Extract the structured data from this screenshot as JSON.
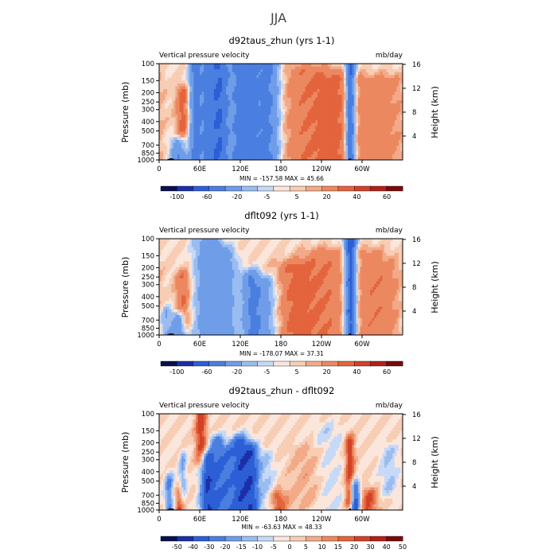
{
  "figure": {
    "title": "JJA",
    "colors": {
      "palette": [
        "#08104e",
        "#1c2fa8",
        "#2c5fd6",
        "#4a7fe0",
        "#6f9de8",
        "#9bbcf0",
        "#c6d9f6",
        "#fbe6dc",
        "#f7cdb4",
        "#f2aa88",
        "#ec8860",
        "#e3643d",
        "#d24128",
        "#b32018",
        "#7a0a0a"
      ],
      "topography": "#000000"
    }
  },
  "chart_data": [
    {
      "type": "heatmap",
      "title": "d92taus_zhun (yrs 1-1)",
      "left_string": "Vertical pressure velocity",
      "right_string": "mb/day",
      "xlabel": "",
      "ylabel": "Pressure (mb)",
      "y2label": "Height (km)",
      "xticks": [
        "0",
        "60E",
        "120E",
        "180",
        "120W",
        "60W"
      ],
      "yticks": [
        "100",
        "150",
        "200",
        "250",
        "300",
        "400",
        "500",
        "700",
        "850",
        "1000"
      ],
      "y2ticks": [
        "16",
        "12",
        "8",
        "4"
      ],
      "x_range": [
        0,
        360
      ],
      "y_range": [
        1000,
        100
      ],
      "minmax": "MIN = -157.58   MAX =  45.66",
      "min": -157.58,
      "max": 45.66,
      "colorbar": {
        "labels": [
          "-100",
          "-60",
          "-20",
          "-5",
          "5",
          "20",
          "40",
          "60"
        ]
      },
      "levels": [
        -120,
        -100,
        -80,
        -60,
        -40,
        -20,
        -10,
        -5,
        0,
        5,
        10,
        20,
        30,
        40,
        50,
        60
      ],
      "features": [
        {
          "lon": 30,
          "value": -45,
          "width": 9,
          "p_top": 700,
          "p_bot": 1000
        },
        {
          "lon": 35,
          "value": 25,
          "width": 7,
          "p_top": 200,
          "p_bot": 700
        },
        {
          "lon": 52,
          "value": -35,
          "width": 6,
          "p_top": 100,
          "p_bot": 1000
        },
        {
          "lon": 62,
          "value": -20,
          "width": 8,
          "p_top": 100,
          "p_bot": 1000
        },
        {
          "lon": 78,
          "value": -45,
          "width": 10,
          "p_top": 100,
          "p_bot": 1000
        },
        {
          "lon": 93,
          "value": -40,
          "width": 8,
          "p_top": 100,
          "p_bot": 1000
        },
        {
          "lon": 115,
          "value": -35,
          "width": 10,
          "p_top": 100,
          "p_bot": 1000
        },
        {
          "lon": 137,
          "value": -40,
          "width": 12,
          "p_top": 100,
          "p_bot": 1000
        },
        {
          "lon": 160,
          "value": -35,
          "width": 10,
          "p_top": 100,
          "p_bot": 1000
        },
        {
          "lon": 172,
          "value": -15,
          "width": 8,
          "p_top": 100,
          "p_bot": 1000
        },
        {
          "lon": 220,
          "value": 18,
          "width": 30,
          "p_top": 120,
          "p_bot": 1000
        },
        {
          "lon": 260,
          "value": 15,
          "width": 20,
          "p_top": 150,
          "p_bot": 1000
        },
        {
          "lon": 283,
          "value": -70,
          "width": 5,
          "p_top": 100,
          "p_bot": 1000
        },
        {
          "lon": 310,
          "value": 12,
          "width": 25,
          "p_top": 150,
          "p_bot": 1000
        },
        {
          "lon": 345,
          "value": 8,
          "width": 15,
          "p_top": 150,
          "p_bot": 1000
        }
      ]
    },
    {
      "type": "heatmap",
      "title": "dflt092 (yrs 1-1)",
      "left_string": "Vertical pressure velocity",
      "right_string": "mb/day",
      "xlabel": "",
      "ylabel": "Pressure (mb)",
      "y2label": "Height (km)",
      "xticks": [
        "0",
        "60E",
        "120E",
        "180",
        "120W",
        "60W"
      ],
      "yticks": [
        "100",
        "150",
        "200",
        "250",
        "300",
        "400",
        "500",
        "700",
        "850",
        "1000"
      ],
      "y2ticks": [
        "16",
        "12",
        "8",
        "4"
      ],
      "x_range": [
        0,
        360
      ],
      "y_range": [
        1000,
        100
      ],
      "minmax": "MIN = -178.07   MAX =  37.31",
      "min": -178.07,
      "max": 37.31,
      "colorbar": {
        "labels": [
          "-100",
          "-60",
          "-20",
          "-5",
          "5",
          "20",
          "40",
          "60"
        ]
      },
      "levels": [
        -120,
        -100,
        -80,
        -60,
        -40,
        -20,
        -10,
        -5,
        0,
        5,
        10,
        20,
        30,
        40,
        50,
        60
      ],
      "features": [
        {
          "lon": 10,
          "value": -20,
          "width": 6,
          "p_top": 600,
          "p_bot": 1000
        },
        {
          "lon": 28,
          "value": -40,
          "width": 7,
          "p_top": 700,
          "p_bot": 1000
        },
        {
          "lon": 35,
          "value": 20,
          "width": 8,
          "p_top": 250,
          "p_bot": 700
        },
        {
          "lon": 62,
          "value": -15,
          "width": 10,
          "p_top": 100,
          "p_bot": 1000
        },
        {
          "lon": 80,
          "value": -30,
          "width": 12,
          "p_top": 120,
          "p_bot": 1000
        },
        {
          "lon": 100,
          "value": -25,
          "width": 10,
          "p_top": 150,
          "p_bot": 1000
        },
        {
          "lon": 135,
          "value": -35,
          "width": 10,
          "p_top": 250,
          "p_bot": 1000
        },
        {
          "lon": 155,
          "value": -30,
          "width": 12,
          "p_top": 300,
          "p_bot": 1000
        },
        {
          "lon": 200,
          "value": 20,
          "width": 20,
          "p_top": 200,
          "p_bot": 1000
        },
        {
          "lon": 245,
          "value": 18,
          "width": 25,
          "p_top": 150,
          "p_bot": 1000
        },
        {
          "lon": 283,
          "value": -75,
          "width": 6,
          "p_top": 100,
          "p_bot": 1000
        },
        {
          "lon": 310,
          "value": 15,
          "width": 20,
          "p_top": 150,
          "p_bot": 1000
        },
        {
          "lon": 340,
          "value": 10,
          "width": 15,
          "p_top": 200,
          "p_bot": 1000
        }
      ]
    },
    {
      "type": "heatmap",
      "title": "d92taus_zhun - dflt092",
      "left_string": "Vertical pressure velocity",
      "right_string": "mb/day",
      "xlabel": "",
      "ylabel": "Pressure (mb)",
      "y2label": "Height (km)",
      "xticks": [
        "0",
        "60E",
        "120E",
        "180",
        "120W",
        "60W"
      ],
      "yticks": [
        "100",
        "150",
        "200",
        "250",
        "300",
        "400",
        "500",
        "700",
        "850",
        "1000"
      ],
      "y2ticks": [
        "16",
        "12",
        "8",
        "4"
      ],
      "x_range": [
        0,
        360
      ],
      "y_range": [
        1000,
        100
      ],
      "minmax": "MIN = -63.63   MAX =  48.33",
      "min": -63.63,
      "max": 48.33,
      "colorbar": {
        "labels": [
          "-50",
          "-40",
          "-30",
          "-20",
          "-15",
          "-10",
          "-5",
          "0",
          "5",
          "10",
          "15",
          "20",
          "30",
          "40",
          "50"
        ]
      },
      "levels": [
        -60,
        -50,
        -40,
        -30,
        -20,
        -15,
        -10,
        -5,
        0,
        5,
        10,
        15,
        20,
        30,
        40,
        50
      ],
      "features": [
        {
          "lon": 15,
          "value": -20,
          "width": 5,
          "p_top": 500,
          "p_bot": 1000
        },
        {
          "lon": 30,
          "value": 20,
          "width": 5,
          "p_top": 700,
          "p_bot": 1000
        },
        {
          "lon": 35,
          "value": -15,
          "width": 4,
          "p_top": 300,
          "p_bot": 700
        },
        {
          "lon": 62,
          "value": 25,
          "width": 6,
          "p_top": 100,
          "p_bot": 300
        },
        {
          "lon": 70,
          "value": -35,
          "width": 7,
          "p_top": 300,
          "p_bot": 1000
        },
        {
          "lon": 85,
          "value": -25,
          "width": 8,
          "p_top": 200,
          "p_bot": 1000
        },
        {
          "lon": 100,
          "value": -20,
          "width": 8,
          "p_top": 250,
          "p_bot": 1000
        },
        {
          "lon": 120,
          "value": -35,
          "width": 10,
          "p_top": 200,
          "p_bot": 1000
        },
        {
          "lon": 138,
          "value": -30,
          "width": 8,
          "p_top": 250,
          "p_bot": 1000
        },
        {
          "lon": 160,
          "value": -10,
          "width": 8,
          "p_top": 300,
          "p_bot": 1000
        },
        {
          "lon": 175,
          "value": 20,
          "width": 10,
          "p_top": 750,
          "p_bot": 1000
        },
        {
          "lon": 220,
          "value": 8,
          "width": 20,
          "p_top": 250,
          "p_bot": 800
        },
        {
          "lon": 250,
          "value": -8,
          "width": 15,
          "p_top": 150,
          "p_bot": 1000
        },
        {
          "lon": 282,
          "value": 25,
          "width": 5,
          "p_top": 200,
          "p_bot": 800
        },
        {
          "lon": 290,
          "value": -40,
          "width": 5,
          "p_top": 600,
          "p_bot": 1000
        },
        {
          "lon": 310,
          "value": 20,
          "width": 10,
          "p_top": 700,
          "p_bot": 1000
        },
        {
          "lon": 340,
          "value": -10,
          "width": 10,
          "p_top": 250,
          "p_bot": 600
        }
      ]
    }
  ]
}
